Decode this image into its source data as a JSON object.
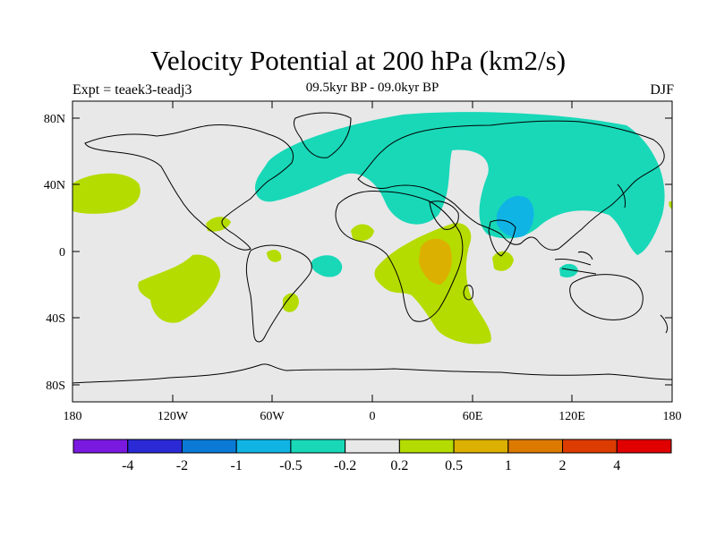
{
  "header": {
    "title": "Velocity Potential at 200 hPa (km2/s)",
    "subtitle": "09.5kyr BP - 09.0kyr BP",
    "experiment": "Expt = teaek3-teadj3",
    "season": "DJF"
  },
  "map": {
    "lat_labels": [
      "80N",
      "40N",
      "0",
      "40S",
      "80S"
    ],
    "lon_labels": [
      "180",
      "120W",
      "60W",
      "0",
      "60E",
      "120E",
      "180"
    ],
    "background_color": "#e8e8e8"
  },
  "colorbar": {
    "labels": [
      "-4",
      "-2",
      "-1",
      "-0.5",
      "-0.2",
      "0.2",
      "0.5",
      "1",
      "2",
      "4"
    ],
    "colors": [
      "#7a1ae0",
      "#2a2ad6",
      "#0a7ad6",
      "#10b4e4",
      "#18d8b8",
      "#e8e8e8",
      "#b4dc00",
      "#dcb000",
      "#dc7a00",
      "#dc3c00",
      "#e00000"
    ]
  },
  "chart_data": {
    "type": "heatmap",
    "title": "Velocity Potential at 200 hPa (km2/s)",
    "subtitle": "09.5kyr BP - 09.0kyr BP",
    "variable": "Velocity Potential at 200 hPa",
    "units": "km2/s",
    "season": "DJF",
    "lon_range": [
      -180,
      180
    ],
    "lat_range": [
      -90,
      90
    ],
    "contour_levels": [
      -4,
      -2,
      -1,
      -0.5,
      -0.2,
      0.2,
      0.5,
      1,
      2,
      4
    ],
    "dominant_regions": [
      {
        "region": "Eurasia and North Atlantic",
        "range": "-0.5 to -0.2"
      },
      {
        "region": "South Asia / Tibetan Plateau",
        "range": "-1 to -0.5"
      },
      {
        "region": "Eastern and Southern Africa",
        "range": "0.2 to 0.5"
      },
      {
        "region": "East Africa core",
        "range": "0.5 to 1"
      },
      {
        "region": "Central North Pacific",
        "range": "0.2 to 0.5"
      },
      {
        "region": "South Pacific",
        "range": "0.2 to 0.5"
      }
    ]
  }
}
